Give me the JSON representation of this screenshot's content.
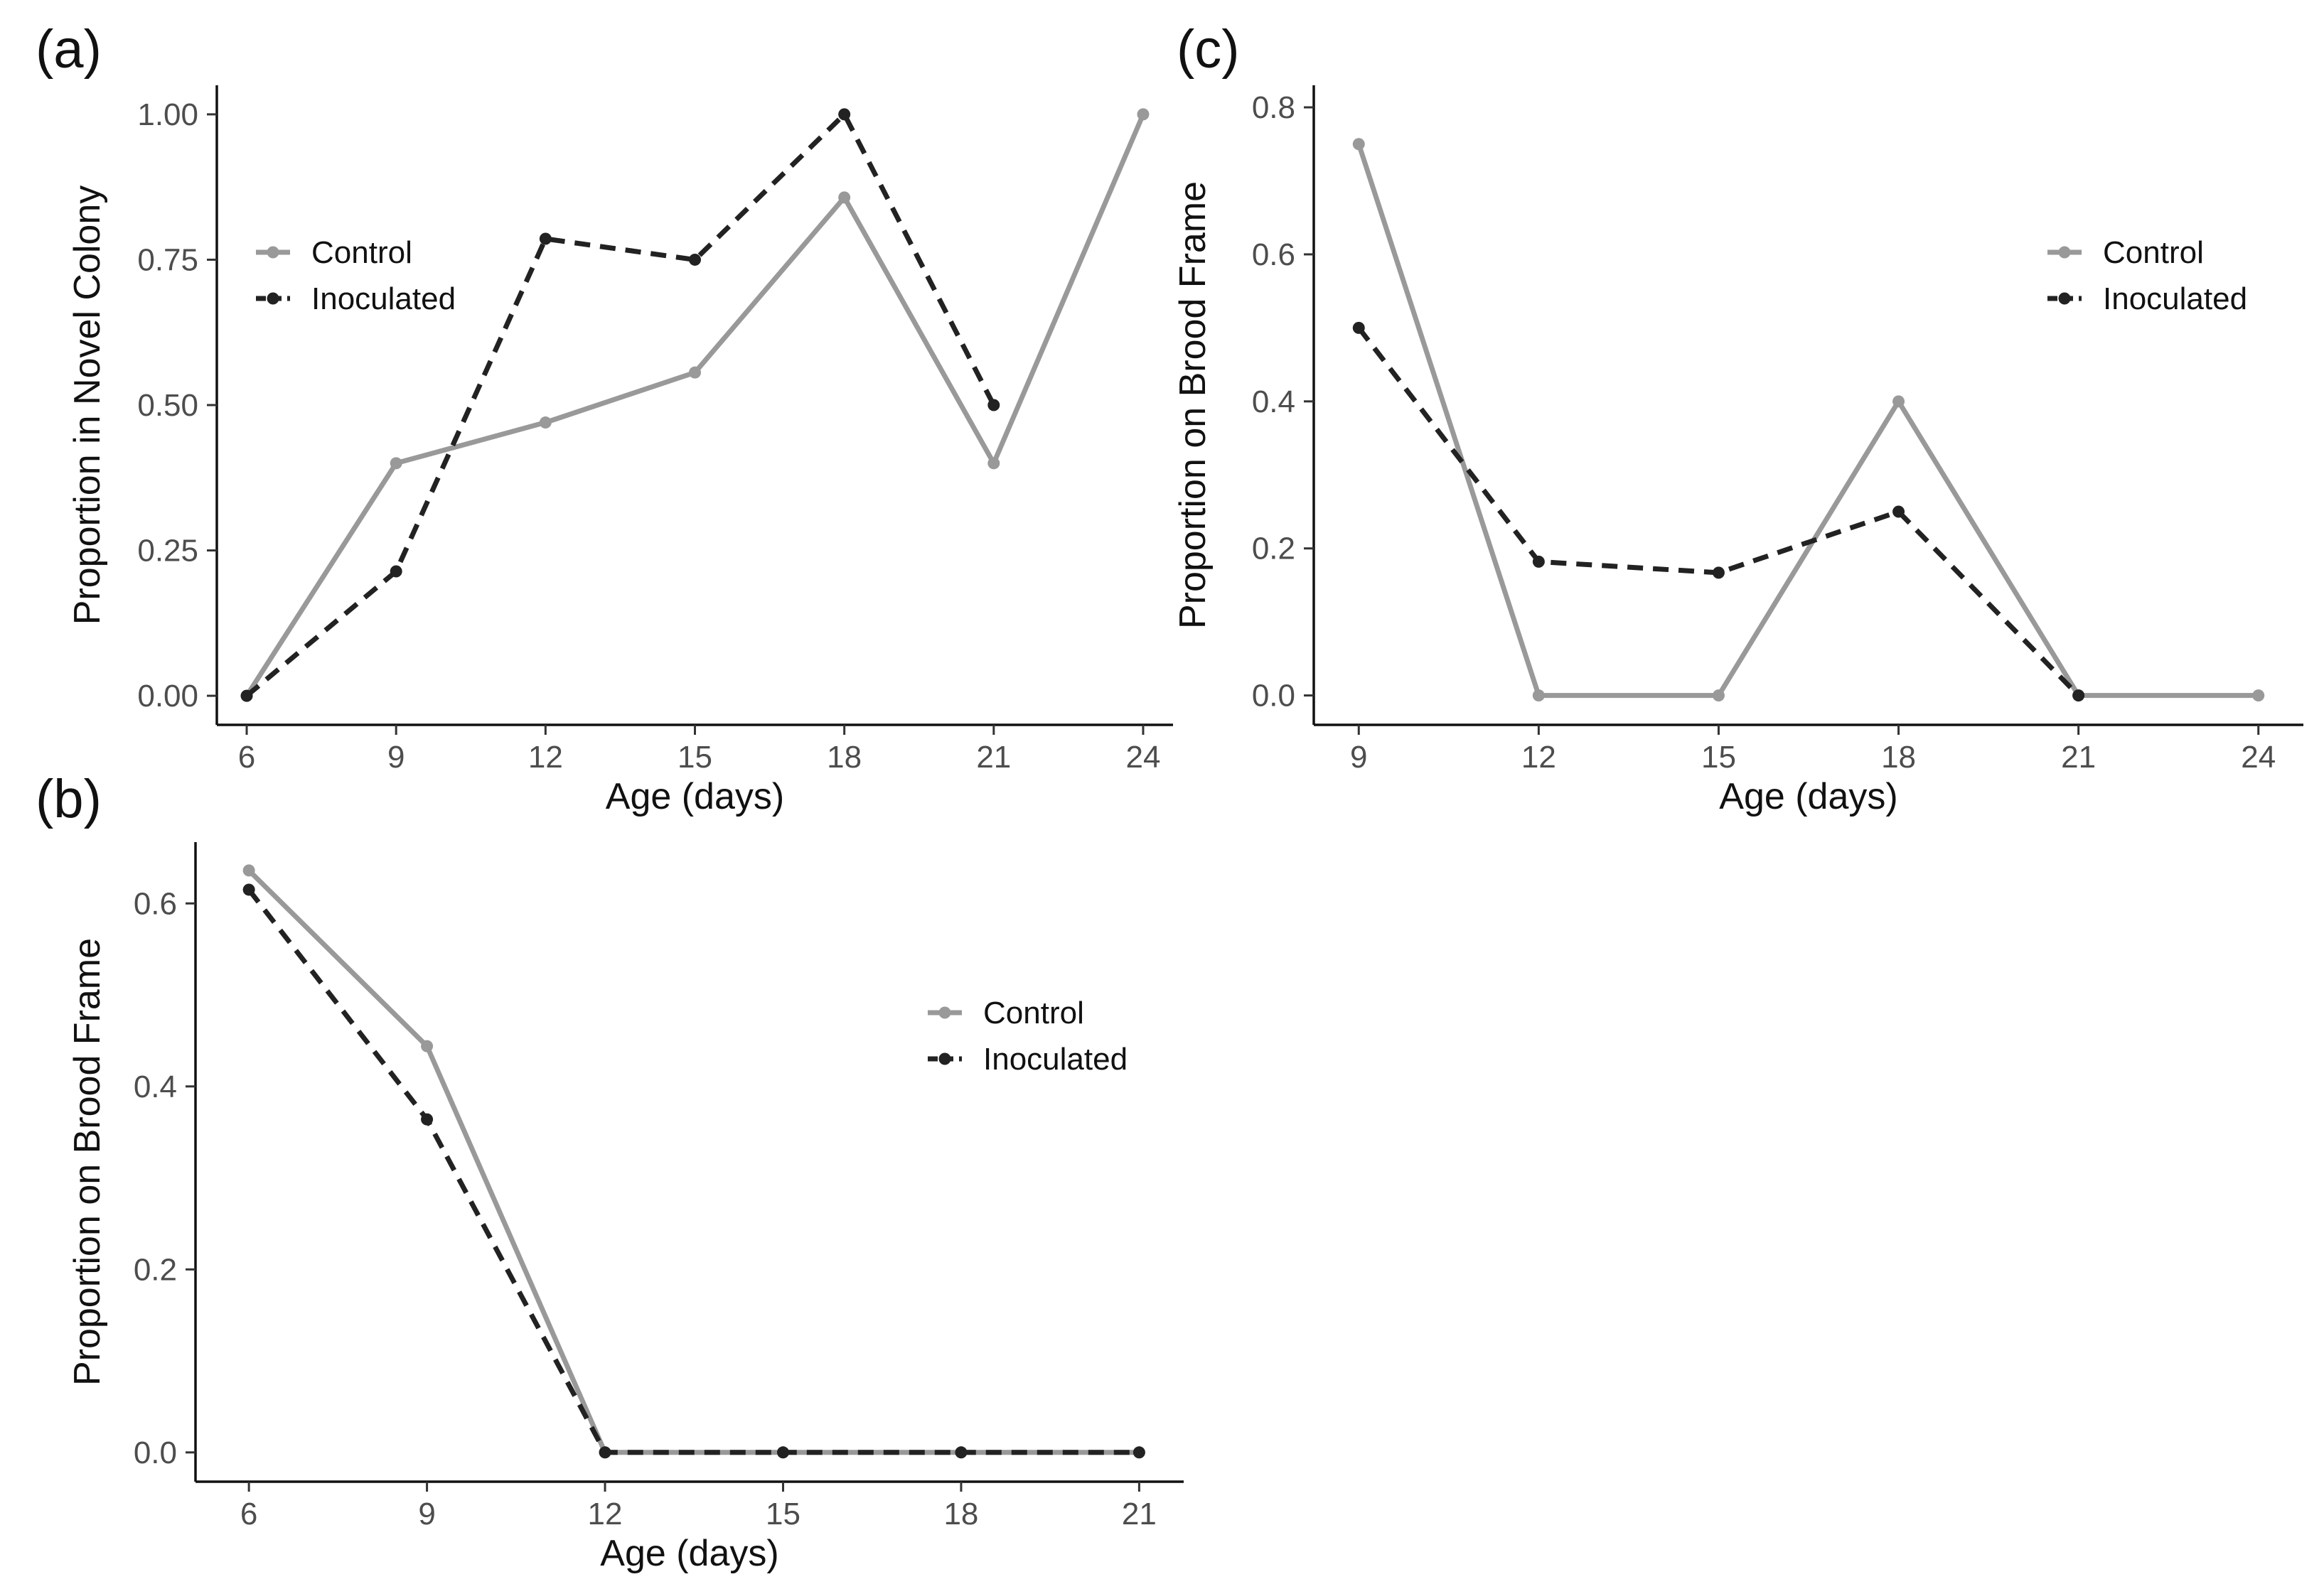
{
  "chart_data": [
    {
      "type": "line",
      "panel_label": "(a)",
      "xlabel": "Age (days)",
      "ylabel": "Proportion in Novel Colony",
      "xlim": [
        5.4,
        24.6
      ],
      "ylim": [
        -0.05,
        1.05
      ],
      "xticks": [
        6,
        9,
        12,
        15,
        18,
        21,
        24
      ],
      "xtick_labels": [
        "6",
        "9",
        "12",
        "15",
        "18",
        "21",
        "24"
      ],
      "yticks": [
        0,
        0.25,
        0.5,
        0.75,
        1.0
      ],
      "ytick_labels": [
        "0.00",
        "0.25",
        "0.50",
        "0.75",
        "1.00"
      ],
      "legend_position": "upper-left",
      "grid": false,
      "series": [
        {
          "name": "Control",
          "color": "#999999",
          "dash": "solid",
          "x": [
            6,
            9,
            12,
            15,
            18,
            21,
            24
          ],
          "values": [
            0.0,
            0.4,
            0.47,
            0.556,
            0.857,
            0.4,
            1.0
          ]
        },
        {
          "name": "Inoculated",
          "color": "#222222",
          "dash": "dashed",
          "x": [
            6,
            9,
            12,
            15,
            18,
            21
          ],
          "values": [
            0.0,
            0.214,
            0.786,
            0.75,
            1.0,
            0.5
          ]
        }
      ]
    },
    {
      "type": "line",
      "panel_label": "(b)",
      "xlabel": "Age (days)",
      "ylabel": "Proportion on Brood Frame",
      "xlim": [
        5.1,
        21.75
      ],
      "ylim": [
        -0.032,
        0.667
      ],
      "xticks": [
        6,
        9,
        12,
        15,
        18,
        21
      ],
      "xtick_labels": [
        "6",
        "9",
        "12",
        "15",
        "18",
        "21"
      ],
      "yticks": [
        0,
        0.2,
        0.4,
        0.6
      ],
      "ytick_labels": [
        "0.0",
        "0.2",
        "0.4",
        "0.6"
      ],
      "legend_position": "right",
      "grid": false,
      "series": [
        {
          "name": "Control",
          "color": "#999999",
          "dash": "solid",
          "x": [
            6,
            9,
            12,
            15,
            18,
            21
          ],
          "values": [
            0.636,
            0.444,
            0.0,
            0.0,
            0.0,
            0.0
          ]
        },
        {
          "name": "Inoculated",
          "color": "#222222",
          "dash": "dashed",
          "x": [
            6,
            9,
            12,
            15,
            18,
            21
          ],
          "values": [
            0.615,
            0.364,
            0.0,
            0.0,
            0.0,
            0.0
          ]
        }
      ]
    },
    {
      "type": "line",
      "panel_label": "(c)",
      "xlabel": "Age (days)",
      "ylabel": "Proportion on Brood Frame",
      "xlim": [
        8.25,
        24.75
      ],
      "ylim": [
        -0.04,
        0.83
      ],
      "xticks": [
        9,
        12,
        15,
        18,
        21,
        24
      ],
      "xtick_labels": [
        "9",
        "12",
        "15",
        "18",
        "21",
        "24"
      ],
      "yticks": [
        0,
        0.2,
        0.4,
        0.6,
        0.8
      ],
      "ytick_labels": [
        "0.0",
        "0.2",
        "0.4",
        "0.6",
        "0.8"
      ],
      "legend_position": "upper-right",
      "grid": false,
      "series": [
        {
          "name": "Control",
          "color": "#999999",
          "dash": "solid",
          "x": [
            9,
            12,
            15,
            18,
            21,
            24
          ],
          "values": [
            0.75,
            0.0,
            0.0,
            0.4,
            0.0,
            0.0
          ]
        },
        {
          "name": "Inoculated",
          "color": "#222222",
          "dash": "dashed",
          "x": [
            9,
            12,
            15,
            18,
            21
          ],
          "values": [
            0.5,
            0.182,
            0.167,
            0.25,
            0.0
          ]
        }
      ]
    }
  ]
}
